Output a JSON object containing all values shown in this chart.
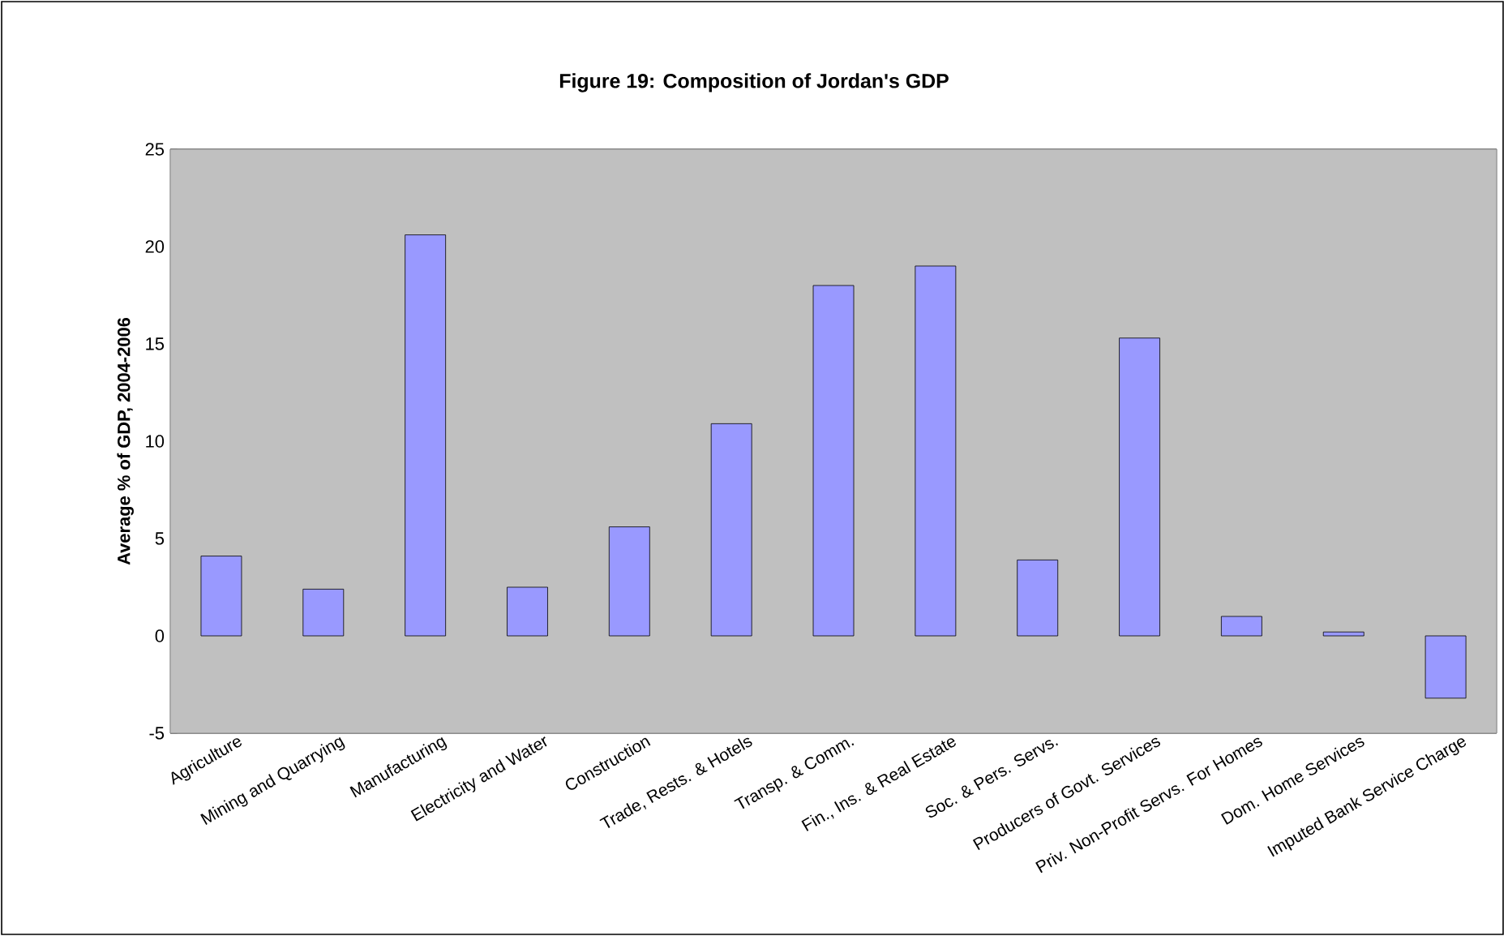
{
  "chart_data": {
    "type": "bar",
    "title": "Figure 19: Composition of Jordan's GDP",
    "ylabel": "Average % of GDP, 2004-2006",
    "categories": [
      "Agriculture",
      "Mining and Quarrying",
      "Manufacturing",
      "Electricity and Water",
      "Construction",
      "Trade, Rests. & Hotels",
      "Transp. & Comm.",
      "Fin., Ins. & Real Estate",
      "Soc. & Pers. Servs.",
      "Producers of Govt. Services",
      "Priv. Non-Profit Servs. For Homes",
      "Dom. Home Services",
      "Imputed Bank Service Charge"
    ],
    "values": [
      4.1,
      2.4,
      20.6,
      2.5,
      5.6,
      10.9,
      18.0,
      19.0,
      3.9,
      15.3,
      1.0,
      0.2,
      -3.2
    ],
    "color": "#9999ff",
    "ylim": [
      -5,
      25
    ],
    "yticks": [
      -5,
      0,
      5,
      10,
      15,
      20,
      25
    ],
    "grid": "y"
  }
}
